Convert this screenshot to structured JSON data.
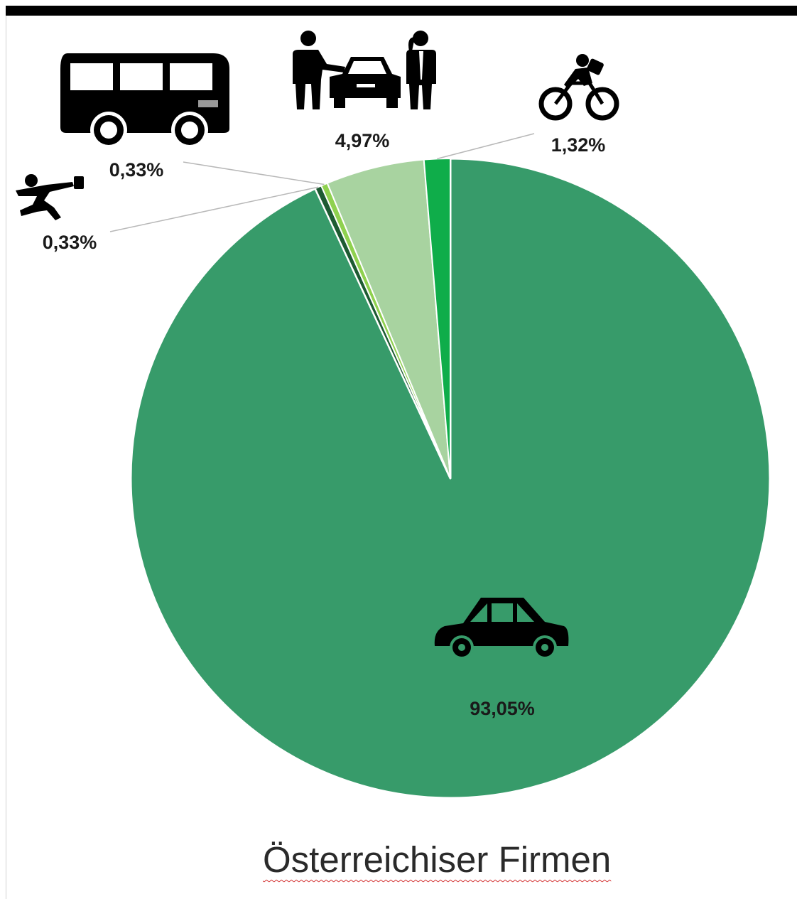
{
  "chart_data": {
    "type": "pie",
    "title": "Österreichiser Firmen",
    "slices": [
      {
        "label": "93,05%",
        "value": 93.05,
        "mode": "car",
        "color": "#379b6a"
      },
      {
        "label": "0,33%",
        "value": 0.33,
        "mode": "walking",
        "color": "#1d5b32"
      },
      {
        "label": "0,33%",
        "value": 0.33,
        "mode": "bus",
        "color": "#8fd14f"
      },
      {
        "label": "4,97%",
        "value": 4.97,
        "mode": "carpool",
        "color": "#a8d3a0"
      },
      {
        "label": "1,32%",
        "value": 1.32,
        "mode": "bicycle",
        "color": "#0fad4a"
      }
    ]
  },
  "icons": [
    "car-icon",
    "walking-person-icon",
    "bus-icon",
    "carpool-icon",
    "cyclist-icon"
  ]
}
